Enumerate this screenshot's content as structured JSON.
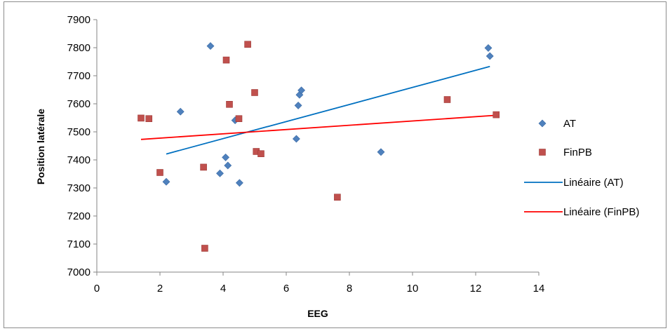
{
  "chart_data": {
    "type": "scatter",
    "xlabel": "EEG",
    "ylabel": "Position latérale",
    "xlim": [
      0,
      14
    ],
    "ylim": [
      7000,
      7900
    ],
    "x_ticks": [
      "0",
      "2",
      "4",
      "6",
      "8",
      "10",
      "12",
      "14"
    ],
    "y_ticks": [
      "7000",
      "7100",
      "7200",
      "7300",
      "7400",
      "7500",
      "7600",
      "7700",
      "7800",
      "7900"
    ],
    "grid": false,
    "legend_position": "right",
    "series": [
      {
        "name": "AT",
        "marker": "diamond",
        "color": "#4f81bd",
        "points": [
          [
            2.2,
            7322
          ],
          [
            2.65,
            7572
          ],
          [
            3.6,
            7806
          ],
          [
            3.9,
            7352
          ],
          [
            4.08,
            7409
          ],
          [
            4.15,
            7380
          ],
          [
            4.38,
            7541
          ],
          [
            4.52,
            7318
          ],
          [
            6.32,
            7475
          ],
          [
            6.38,
            7594
          ],
          [
            6.42,
            7632
          ],
          [
            6.48,
            7648
          ],
          [
            9.0,
            7428
          ],
          [
            12.4,
            7799
          ],
          [
            12.45,
            7770
          ]
        ]
      },
      {
        "name": "FinPB",
        "marker": "square",
        "color": "#c0504d",
        "points": [
          [
            1.4,
            7549
          ],
          [
            1.65,
            7547
          ],
          [
            2.0,
            7355
          ],
          [
            3.38,
            7374
          ],
          [
            3.42,
            7085
          ],
          [
            4.1,
            7756
          ],
          [
            4.2,
            7598
          ],
          [
            4.5,
            7547
          ],
          [
            4.78,
            7812
          ],
          [
            5.0,
            7640
          ],
          [
            5.05,
            7430
          ],
          [
            5.2,
            7422
          ],
          [
            7.62,
            7267
          ],
          [
            11.1,
            7615
          ],
          [
            12.65,
            7561
          ]
        ]
      }
    ],
    "trendlines": [
      {
        "name": "Linéaire (AT)",
        "color": "#0070c0",
        "x": [
          2.2,
          12.45
        ],
        "y": [
          7421,
          7733
        ]
      },
      {
        "name": "Linéaire (FinPB)",
        "color": "#ff0000",
        "x": [
          1.4,
          12.65
        ],
        "y": [
          7473,
          7559
        ]
      }
    ]
  }
}
